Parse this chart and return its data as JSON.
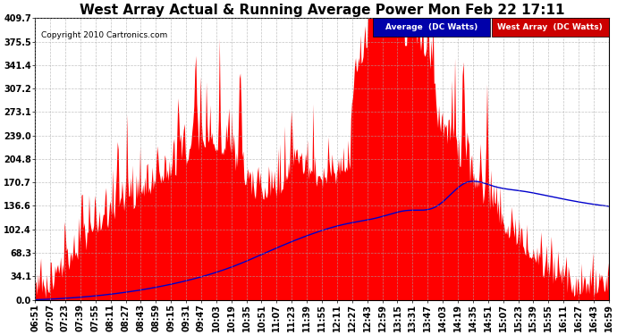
{
  "title": "West Array Actual & Running Average Power Mon Feb 22 17:11",
  "copyright": "Copyright 2010 Cartronics.com",
  "legend_labels": [
    "Average  (DC Watts)",
    "West Array  (DC Watts)"
  ],
  "ymin": 0.0,
  "ymax": 409.7,
  "yticks": [
    0.0,
    34.1,
    68.3,
    102.4,
    136.6,
    170.7,
    204.8,
    239.0,
    273.1,
    307.2,
    341.4,
    375.5,
    409.7
  ],
  "background_color": "#ffffff",
  "grid_color": "#aaaaaa",
  "area_color": "#ff0000",
  "line_color": "#0000cc",
  "title_fontsize": 11,
  "xtick_labels": [
    "06:51",
    "07:07",
    "07:23",
    "07:39",
    "07:55",
    "08:11",
    "08:27",
    "08:43",
    "08:59",
    "09:15",
    "09:31",
    "09:47",
    "10:03",
    "10:19",
    "10:35",
    "10:51",
    "11:07",
    "11:23",
    "11:39",
    "11:55",
    "12:11",
    "12:27",
    "12:43",
    "12:59",
    "13:15",
    "13:31",
    "13:47",
    "14:03",
    "14:19",
    "14:35",
    "14:51",
    "15:07",
    "15:23",
    "15:39",
    "15:55",
    "16:11",
    "16:27",
    "16:43",
    "16:59"
  ],
  "avg_points_x": [
    0,
    0.05,
    0.15,
    0.25,
    0.35,
    0.42,
    0.48,
    0.54,
    0.6,
    0.65,
    0.7,
    0.75,
    0.8,
    0.85,
    0.9,
    0.95,
    1.0
  ],
  "avg_points_y": [
    0,
    2,
    10,
    25,
    50,
    75,
    95,
    110,
    120,
    130,
    136,
    170,
    165,
    158,
    150,
    142,
    136
  ]
}
